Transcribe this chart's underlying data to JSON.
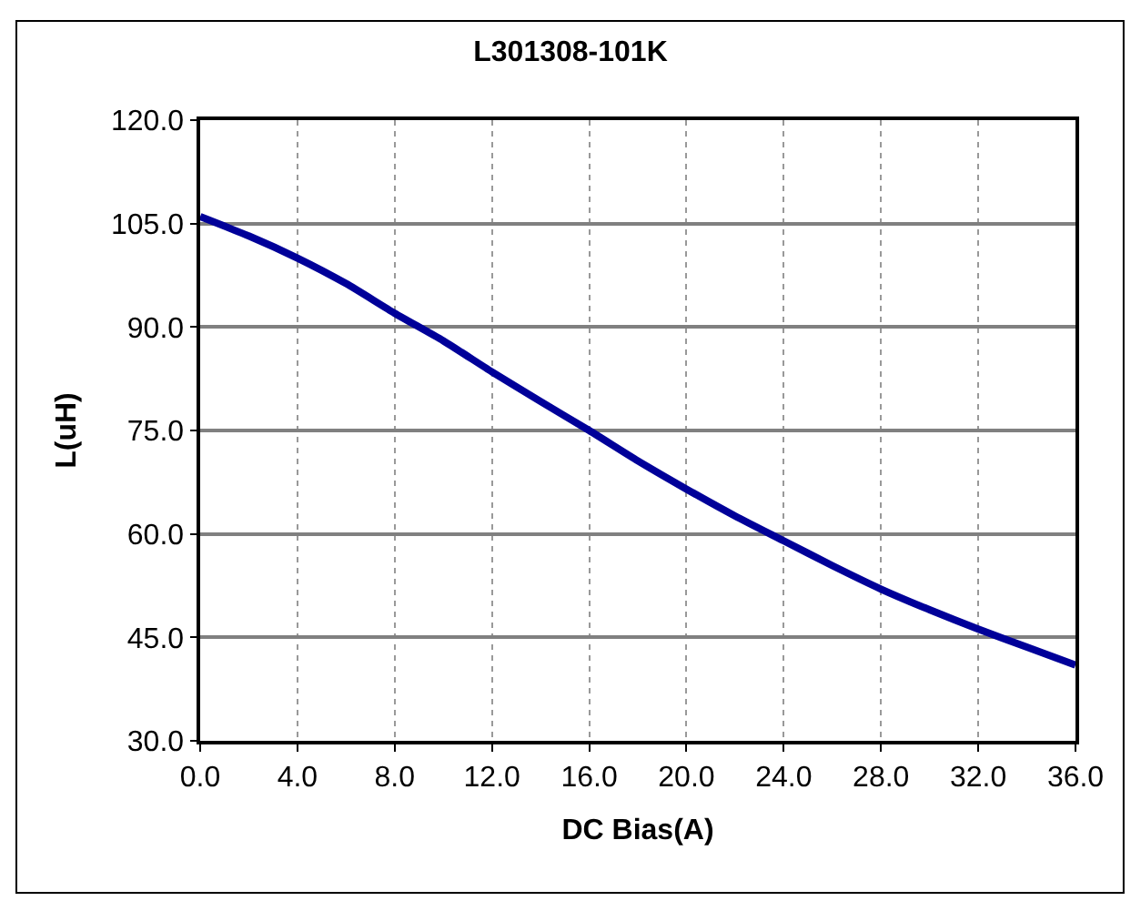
{
  "chart_data": {
    "type": "line",
    "title": "L301308-101K",
    "xlabel": "DC Bias(A)",
    "ylabel": "L(uH)",
    "x": [
      0,
      2,
      4,
      6,
      8,
      10,
      12,
      14,
      16,
      18,
      20,
      22,
      24,
      26,
      28,
      30,
      32,
      34,
      36
    ],
    "series": [
      {
        "color": "#000099",
        "values": [
          106,
          103.2,
          100,
          96.3,
          92,
          88,
          83.5,
          79.2,
          75,
          70.6,
          66.5,
          62.6,
          59,
          55.4,
          52,
          49,
          46.2,
          43.6,
          41
        ]
      }
    ],
    "xlim": [
      0,
      36
    ],
    "xticks": [
      {
        "value": 0,
        "label": "0.0"
      },
      {
        "value": 4,
        "label": "4.0"
      },
      {
        "value": 8,
        "label": "8.0"
      },
      {
        "value": 12,
        "label": "12.0"
      },
      {
        "value": 16,
        "label": "16.0"
      },
      {
        "value": 20,
        "label": "20.0"
      },
      {
        "value": 24,
        "label": "24.0"
      },
      {
        "value": 28,
        "label": "28.0"
      },
      {
        "value": 32,
        "label": "32.0"
      },
      {
        "value": 36,
        "label": "36.0"
      }
    ],
    "ylim": [
      30,
      120
    ],
    "yticks": [
      {
        "value": 30,
        "label": "30.0"
      },
      {
        "value": 45,
        "label": "45.0"
      },
      {
        "value": 60,
        "label": "60.0"
      },
      {
        "value": 75,
        "label": "75.0"
      },
      {
        "value": 90,
        "label": "90.0"
      },
      {
        "value": 105,
        "label": "105.0"
      },
      {
        "value": 120,
        "label": "120.0"
      }
    ],
    "grid": true,
    "marker": "none",
    "line_style": "solid"
  }
}
